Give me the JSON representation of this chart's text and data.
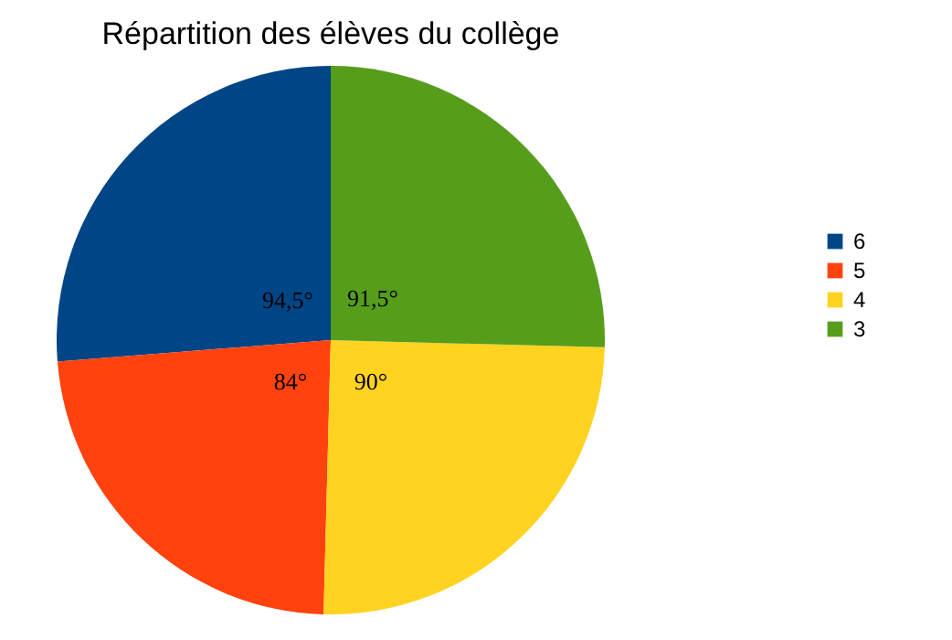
{
  "chart_data": {
    "type": "pie",
    "title": "Répartition des élèves du collège",
    "categories": [
      "6",
      "5",
      "4",
      "3"
    ],
    "values": [
      94.5,
      84,
      90,
      91.5
    ],
    "colors": [
      "#004586",
      "#ff420e",
      "#ffd320",
      "#579d1c"
    ],
    "value_labels": [
      "94,5°",
      "84°",
      "90°",
      "91,5°"
    ],
    "legend": "right"
  }
}
